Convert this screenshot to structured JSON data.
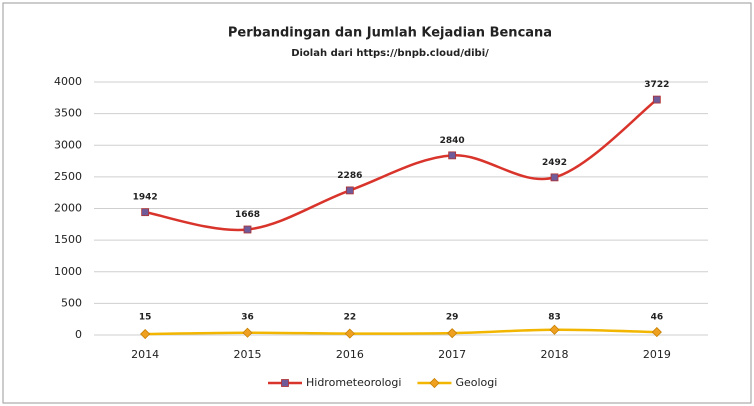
{
  "chart_data": {
    "type": "line",
    "title": "Perbandingan dan Jumlah Kejadian Bencana",
    "subtitle": "Diolah dari https://bnpb.cloud/dibi/",
    "categories": [
      "2014",
      "2015",
      "2016",
      "2017",
      "2018",
      "2019"
    ],
    "series": [
      {
        "name": "Hidrometeorologi",
        "color": "#d9342b",
        "marker_color": "#6f5b9a",
        "values": [
          1942,
          1668,
          2286,
          2840,
          2492,
          3722
        ]
      },
      {
        "name": "Geologi",
        "color": "#f2b600",
        "marker_color": "#f0a020",
        "values": [
          15,
          36,
          22,
          29,
          83,
          46
        ]
      }
    ],
    "ylim": [
      0,
      4000
    ],
    "yticks": [
      0,
      500,
      1000,
      1500,
      2000,
      2500,
      3000,
      3500,
      4000
    ],
    "grid": true,
    "legend": "bottom"
  }
}
